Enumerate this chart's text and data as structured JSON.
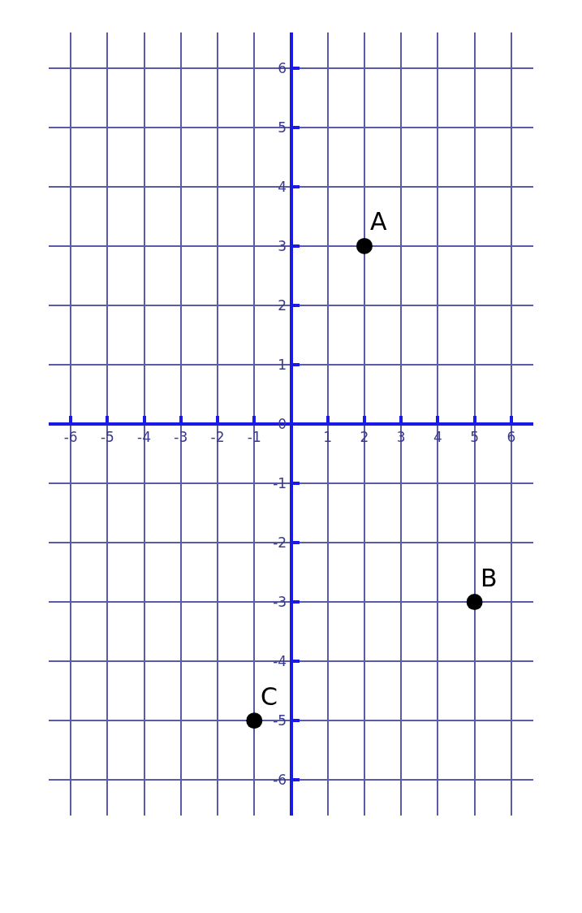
{
  "chart_data": {
    "type": "scatter",
    "x": [
      2,
      5,
      -1
    ],
    "values": [
      3,
      -3,
      -5
    ],
    "color": "#000000",
    "marker": "circle",
    "annotations": [
      {
        "text": "A",
        "x": 2,
        "y": 3
      },
      {
        "text": "B",
        "x": 5,
        "y": -3
      },
      {
        "text": "C",
        "x": -1,
        "y": -5
      }
    ],
    "xlim": [
      -6.6,
      6.6
    ],
    "ylim": [
      -6.6,
      6.6
    ],
    "xticks": [
      -6,
      -5,
      -4,
      -3,
      -2,
      -1,
      {
        "value": 0,
        "label": null
      },
      1,
      2,
      3,
      4,
      5,
      6
    ],
    "yticks": [
      -6,
      -5,
      -4,
      -3,
      -2,
      -1,
      0,
      1,
      2,
      3,
      4,
      5,
      6
    ],
    "grid": true
  }
}
